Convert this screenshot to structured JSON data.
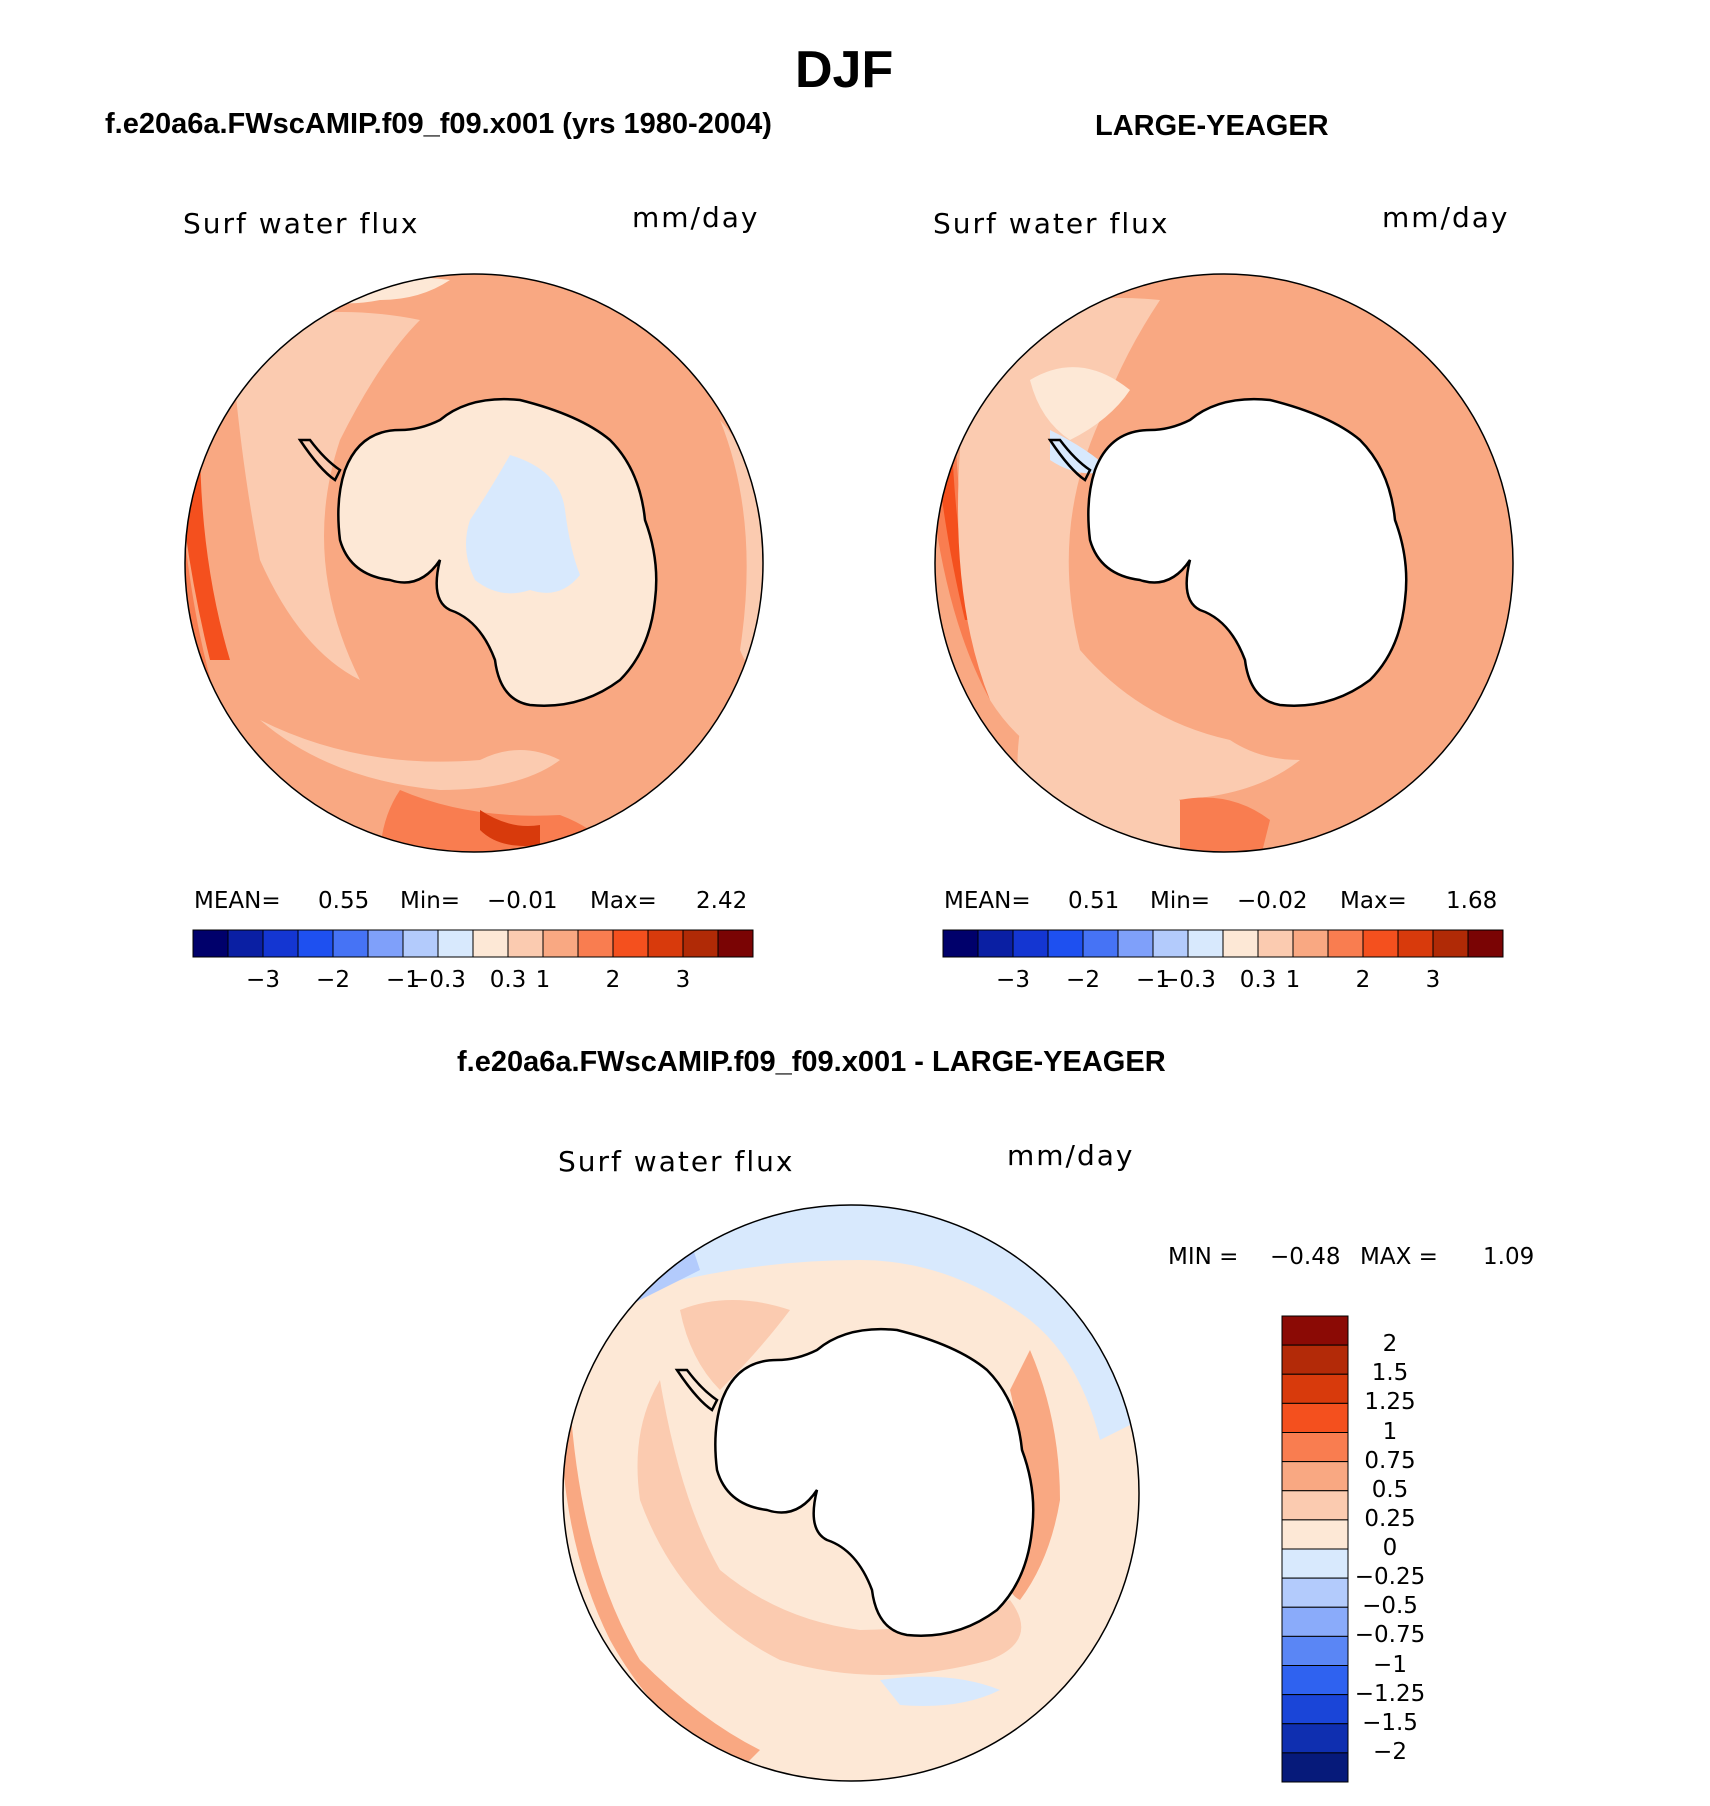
{
  "figure": {
    "title": "DJF",
    "panel1_title": "f.e20a6a.FWscAMIP.f09_f09.x001 (yrs 1980-2004)",
    "panel2_title": "LARGE-YEAGER",
    "panel3_title": "f.e20a6a.FWscAMIP.f09_f09.x001 - LARGE-YEAGER"
  },
  "panels": [
    {
      "variable": "Surf water flux",
      "units": "mm/day",
      "stats": {
        "mean_label": "MEAN=",
        "mean": "0.55",
        "min_label": "Min=",
        "min": "−0.01",
        "max_label": "Max=",
        "max": "2.42"
      }
    },
    {
      "variable": "Surf water flux",
      "units": "mm/day",
      "stats": {
        "mean_label": "MEAN=",
        "mean": "0.51",
        "min_label": "Min=",
        "min": "−0.02",
        "max_label": "Max=",
        "max": "1.68"
      }
    },
    {
      "variable": "Surf water flux",
      "units": "mm/day",
      "stats": {
        "min_label": "MIN =",
        "min": "−0.48",
        "max_label": "MAX =",
        "max": "1.09"
      }
    }
  ],
  "colorbar_horizontal": {
    "colors": [
      "#00006b",
      "#0a1fa3",
      "#1436d2",
      "#1e50f0",
      "#4673f5",
      "#7fa0fa",
      "#b3cbfc",
      "#d8e9fd",
      "#fde8d6",
      "#fbcbb0",
      "#f9a882",
      "#f97d50",
      "#f4501e",
      "#d83a0c",
      "#b02a06",
      "#7a0404"
    ],
    "tick_labels": [
      "−3",
      "−2",
      "−1",
      "−0.3",
      "0.3",
      "1",
      "2",
      "3"
    ]
  },
  "colorbar_vertical": {
    "colors_top_to_bottom": [
      "#8b0a05",
      "#b32a08",
      "#d83a0c",
      "#f4501e",
      "#f97d50",
      "#f9a882",
      "#fbcbb0",
      "#fde8d6",
      "#d8e9fd",
      "#b3cbfc",
      "#8aabfa",
      "#5a86f5",
      "#2f62f0",
      "#1a45d8",
      "#0f2fb0",
      "#061a7a"
    ],
    "tick_labels": [
      "2",
      "1.5",
      "1.25",
      "1",
      "0.75",
      "0.5",
      "0.25",
      "0",
      "−0.25",
      "−0.5",
      "−0.75",
      "−1",
      "−1.25",
      "−1.5",
      "−2"
    ]
  },
  "map_colors": {
    "ocean_ring_1": "#f9a882",
    "ocean_ring_2": "#fbcbb0",
    "ocean_ring_3": "#f97d50",
    "ocean_ring_4": "#f4501e",
    "continent_fill": "#fde8d6",
    "continent_inner": "#d8e9fd",
    "diff_ocean": "#fde8d6",
    "diff_positive": "#fbcbb0",
    "diff_positive_2": "#f9a882",
    "diff_negative": "#d8e9fd",
    "diff_negative_2": "#b3cbfc"
  }
}
